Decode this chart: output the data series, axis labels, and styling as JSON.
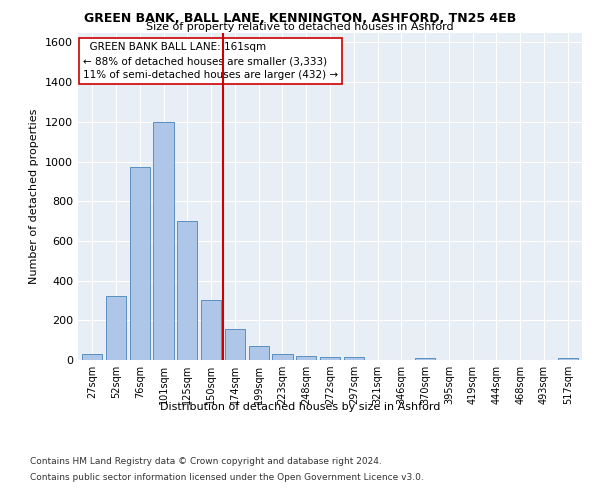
{
  "title": "GREEN BANK, BALL LANE, KENNINGTON, ASHFORD, TN25 4EB",
  "subtitle": "Size of property relative to detached houses in Ashford",
  "xlabel": "Distribution of detached houses by size in Ashford",
  "ylabel": "Number of detached properties",
  "bar_labels": [
    "27sqm",
    "52sqm",
    "76sqm",
    "101sqm",
    "125sqm",
    "150sqm",
    "174sqm",
    "199sqm",
    "223sqm",
    "248sqm",
    "272sqm",
    "297sqm",
    "321sqm",
    "346sqm",
    "370sqm",
    "395sqm",
    "419sqm",
    "444sqm",
    "468sqm",
    "493sqm",
    "517sqm"
  ],
  "bar_values": [
    30,
    320,
    970,
    1200,
    700,
    300,
    155,
    70,
    30,
    20,
    15,
    15,
    0,
    0,
    10,
    0,
    0,
    0,
    0,
    0,
    10
  ],
  "bar_color": "#aec6e8",
  "bar_edge_color": "#5a8fc0",
  "vline_x_index": 5.5,
  "vline_color": "#cc0000",
  "annotation_text": "  GREEN BANK BALL LANE: 161sqm\n← 88% of detached houses are smaller (3,333)\n11% of semi-detached houses are larger (432) →",
  "annotation_box_color": "#ffffff",
  "annotation_box_edge": "#cc0000",
  "ylim": [
    0,
    1650
  ],
  "yticks": [
    0,
    200,
    400,
    600,
    800,
    1000,
    1200,
    1400,
    1600
  ],
  "footer_line1": "Contains HM Land Registry data © Crown copyright and database right 2024.",
  "footer_line2": "Contains public sector information licensed under the Open Government Licence v3.0.",
  "bg_color": "#e8eef5",
  "fig_bg_color": "#ffffff"
}
